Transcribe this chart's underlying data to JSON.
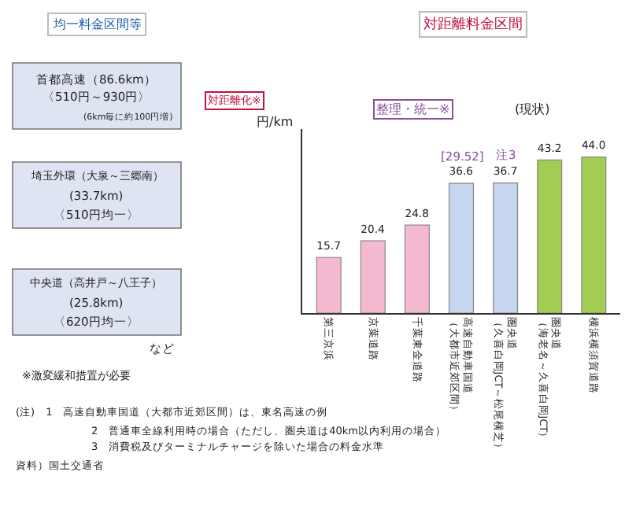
{
  "chart_data": {
    "type": "bar",
    "title": "対距離料金区間",
    "ylabel": "円/km",
    "categories": [
      "第三京浜",
      "京葉道路",
      "千葉東金道路",
      "高速自動車国道（大都市近郊区間）",
      "圏央道（久喜白岡JCT～松尾横芝）",
      "圏央道（海老名～久喜白岡JCT）",
      "横浜横須賀道路"
    ],
    "values": [
      15.7,
      20.4,
      24.8,
      36.6,
      36.7,
      43.2,
      44.0
    ],
    "value_labels": [
      "15.7",
      "20.4",
      "24.8",
      "36.6",
      "36.7",
      "43.2",
      "44.0"
    ],
    "colors": [
      "#f4b8d0",
      "#f4b8d0",
      "#f4b8d0",
      "#c6d6ef",
      "#c6d6ef",
      "#a3cc55",
      "#a3cc55"
    ],
    "tick_labels": "x",
    "annotations": [
      "均一料金区間等",
      "首都高速（86.6km）",
      "〈510円～930円〉",
      "(6km毎に約100円増)",
      "埼玉外環（大泉～三郷南）",
      "(33.7km)",
      "〈510円均一〉",
      "中央道（高井戸～八王子）",
      "(25.8km)",
      "〈620円均一〉",
      "など",
      "※激変緩和措置が必要",
      "対距離化※",
      "整理・統一※",
      "(現状)",
      {
        "text": "[29.52]",
        "x": "高速自動車国道（大都市近郊区間）",
        "y": 36.6
      },
      {
        "text": "注3",
        "x": "圏央道（久喜白岡JCT～松尾横芝）",
        "y": 36.7
      },
      "(注)　1　高速自動車国道（大都市近郊区間）は、東名高速の例",
      "2　普通車全線利用時の場合（ただし、圏央道は40km以内利用の場合）",
      "3　消費税及びターミナルチャージを除いた場合の料金水準",
      "資料）国土交通省"
    ]
  }
}
